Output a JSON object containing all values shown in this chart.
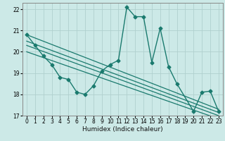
{
  "xlabel": "Humidex (Indice chaleur)",
  "ylabel": "",
  "background_color": "#cce9e7",
  "line_color": "#1a7a6e",
  "grid_color": "#b0d0ce",
  "xlim": [
    -0.5,
    23.5
  ],
  "ylim": [
    17,
    22.3
  ],
  "xticks": [
    0,
    1,
    2,
    3,
    4,
    5,
    6,
    7,
    8,
    9,
    10,
    11,
    12,
    13,
    14,
    15,
    16,
    17,
    18,
    19,
    20,
    21,
    22,
    23
  ],
  "yticks": [
    17,
    18,
    19,
    20,
    21,
    22
  ],
  "main_series": {
    "x": [
      0,
      1,
      2,
      3,
      4,
      5,
      6,
      7,
      8,
      9,
      10,
      11,
      12,
      13,
      14,
      15,
      16,
      17,
      18,
      20,
      21,
      22,
      23
    ],
    "y": [
      20.8,
      20.3,
      19.8,
      19.4,
      18.8,
      18.7,
      18.1,
      18.0,
      18.4,
      19.1,
      19.4,
      19.6,
      22.1,
      21.65,
      21.65,
      19.5,
      21.1,
      19.3,
      18.5,
      17.2,
      18.1,
      18.15,
      17.2
    ]
  },
  "trend_lines": [
    {
      "x": [
        0,
        23
      ],
      "y": [
        20.8,
        17.3
      ]
    },
    {
      "x": [
        0,
        23
      ],
      "y": [
        20.5,
        17.15
      ]
    },
    {
      "x": [
        0,
        23
      ],
      "y": [
        20.3,
        17.0
      ]
    },
    {
      "x": [
        0,
        23
      ],
      "y": [
        20.0,
        16.85
      ]
    }
  ]
}
